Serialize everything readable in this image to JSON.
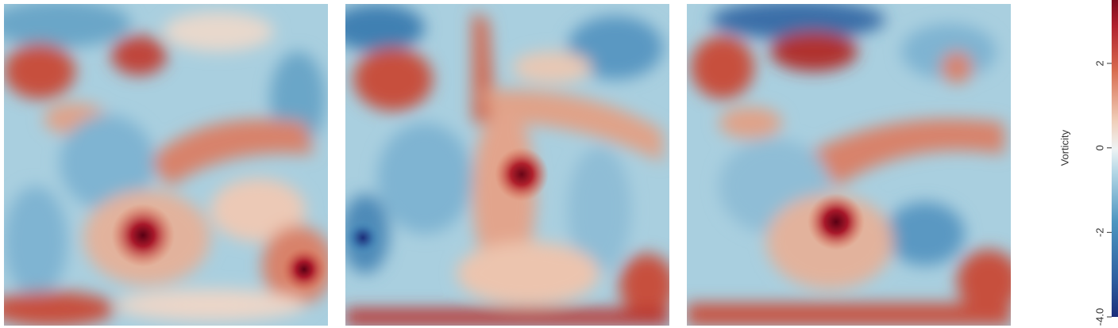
{
  "chart_data": {
    "type": "heatmap",
    "colormap": "RdBu_r",
    "colors": {
      "min": "#1c2e7a",
      "low": "#4d95c0",
      "neutral": "#eef3f4",
      "high": "#d86a4e",
      "max": "#7c0b1e"
    },
    "colorbar": {
      "label": "Vorticity",
      "range": [
        -4.0,
        3.5
      ],
      "ticks": [
        -4.0,
        -2,
        0,
        2
      ],
      "tick_labels": [
        "-4.0",
        "-2",
        "0",
        "2"
      ]
    },
    "panels": [
      {
        "index": 1,
        "ylim": [
          0,
          1
        ],
        "xlim": [
          0,
          1
        ]
      },
      {
        "index": 2,
        "ylim": [
          0,
          1
        ],
        "xlim": [
          0,
          1
        ]
      },
      {
        "index": 3,
        "ylim": [
          0,
          1
        ],
        "xlim": [
          0,
          1
        ]
      }
    ]
  }
}
